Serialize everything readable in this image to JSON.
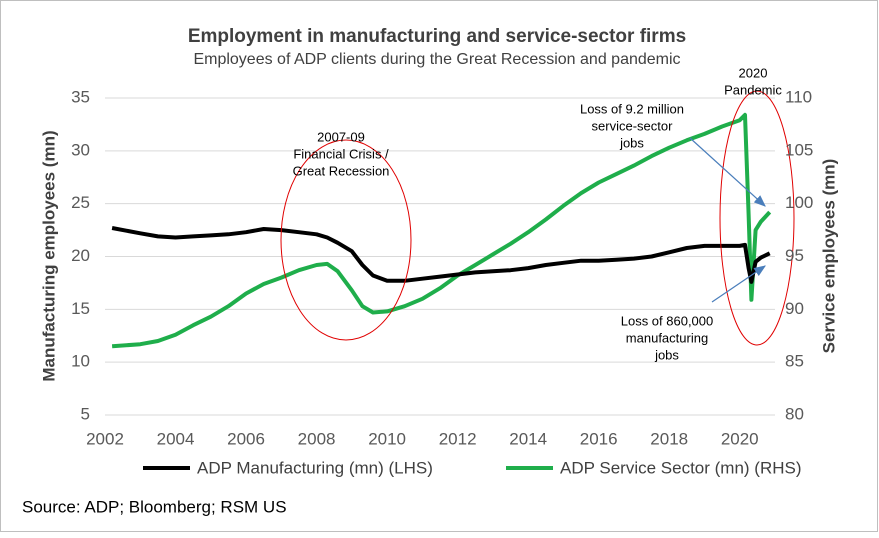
{
  "chart_data": {
    "type": "line",
    "title": "Employment in manufacturing and service-sector firms",
    "subtitle": "Employees of ADP clients during the Great Recession and pandemic",
    "y_label": "Manufacturing employees (mn)",
    "y2_label": "Service employees (mn)",
    "source": "Source: ADP; Bloomberg; RSM US",
    "x": [
      2002.2,
      2003,
      2003.5,
      2004,
      2004.5,
      2005,
      2005.5,
      2006,
      2006.5,
      2007,
      2007.5,
      2008,
      2008.3,
      2008.6,
      2009,
      2009.3,
      2009.6,
      2010,
      2010.5,
      2011,
      2011.5,
      2012,
      2012.5,
      2013,
      2013.5,
      2014,
      2014.5,
      2015,
      2015.5,
      2016,
      2016.5,
      2017,
      2017.5,
      2018,
      2018.5,
      2019,
      2019.5,
      2020,
      2020.15,
      2020.25,
      2020.33,
      2020.45,
      2020.6,
      2020.85
    ],
    "series": [
      {
        "name": "ADP Manufacturing (mn) (LHS)",
        "color": "#000000",
        "values": [
          22.7,
          22.2,
          21.9,
          21.8,
          21.9,
          22.0,
          22.1,
          22.3,
          22.6,
          22.5,
          22.3,
          22.1,
          21.8,
          21.3,
          20.5,
          19.2,
          18.2,
          17.7,
          17.7,
          17.9,
          18.1,
          18.3,
          18.5,
          18.6,
          18.7,
          18.9,
          19.2,
          19.4,
          19.6,
          19.6,
          19.7,
          19.8,
          20.0,
          20.4,
          20.8,
          21.0,
          21.0,
          21.0,
          21.1,
          18.9,
          17.6,
          19.5,
          19.9,
          20.3
        ]
      },
      {
        "name": "ADP Service Sector (mn) (RHS)",
        "color": "#1fae4b",
        "axis": "y2",
        "values": [
          86.5,
          86.7,
          87.0,
          87.6,
          88.5,
          89.3,
          90.3,
          91.5,
          92.4,
          93.0,
          93.7,
          94.2,
          94.3,
          93.6,
          91.8,
          90.3,
          89.7,
          89.8,
          90.3,
          91.0,
          92.0,
          93.2,
          94.2,
          95.2,
          96.2,
          97.3,
          98.5,
          99.8,
          101.0,
          102.0,
          102.8,
          103.6,
          104.5,
          105.3,
          106.0,
          106.6,
          107.3,
          107.9,
          108.4,
          99.0,
          90.9,
          97.5,
          98.3,
          99.2
        ]
      }
    ],
    "xlim": [
      2002,
      2021
    ],
    "xticks": [
      2002,
      2004,
      2006,
      2008,
      2010,
      2012,
      2014,
      2016,
      2018,
      2020
    ],
    "ylim": [
      5,
      35
    ],
    "yticks": [
      5,
      10,
      15,
      20,
      25,
      30,
      35
    ],
    "y2lim": [
      80,
      110
    ],
    "y2ticks": [
      80,
      85,
      90,
      95,
      100,
      105,
      110
    ],
    "grid": true,
    "legend": "bottom",
    "annotations": [
      {
        "lines": [
          "2007-09",
          "Financial Crisis /",
          "Great Recession"
        ]
      },
      {
        "lines": [
          "Loss of 9.2 million",
          "service-sector",
          "jobs"
        ]
      },
      {
        "lines": [
          "2020",
          "Pandemic"
        ]
      },
      {
        "lines": [
          "Loss of 860,000",
          "manufacturing",
          "jobs"
        ]
      }
    ]
  }
}
